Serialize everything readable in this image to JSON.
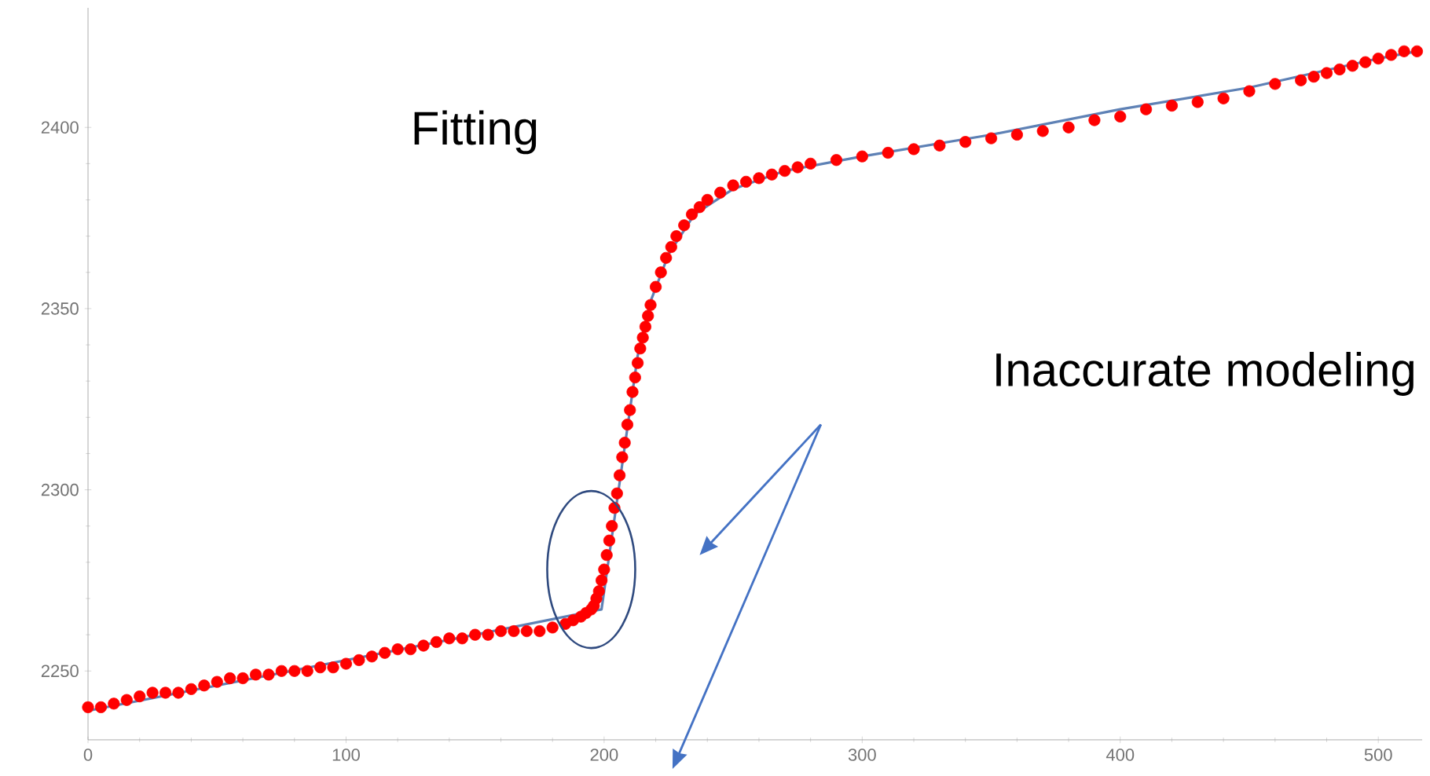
{
  "chart_data": {
    "type": "scatter",
    "annotations": [
      "Fitting",
      "Inaccurate modeling"
    ],
    "xlim": [
      0,
      517
    ],
    "ylim": [
      2231,
      2433
    ],
    "xticks": [
      0,
      100,
      200,
      300,
      400,
      500
    ],
    "yticks": [
      2250,
      2300,
      2350,
      2400
    ],
    "grid": false,
    "series": [
      {
        "marker": "circle",
        "color": "#ff0000",
        "x": [
          0,
          5,
          10,
          15,
          20,
          25,
          30,
          35,
          40,
          45,
          50,
          55,
          60,
          65,
          70,
          75,
          80,
          85,
          90,
          95,
          100,
          105,
          110,
          115,
          120,
          125,
          130,
          135,
          140,
          145,
          150,
          155,
          160,
          165,
          170,
          175,
          180,
          185,
          188,
          191,
          193,
          195,
          196,
          197,
          198,
          199,
          200,
          201,
          202,
          203,
          204,
          205,
          206,
          207,
          208,
          209,
          210,
          211,
          212,
          213,
          214,
          215,
          216,
          217,
          218,
          220,
          222,
          224,
          226,
          228,
          231,
          234,
          237,
          240,
          245,
          250,
          255,
          260,
          265,
          270,
          275,
          280,
          290,
          300,
          310,
          320,
          330,
          340,
          350,
          360,
          370,
          380,
          390,
          400,
          410,
          420,
          430,
          440,
          450,
          460,
          470,
          475,
          480,
          485,
          490,
          495,
          500,
          505,
          510,
          515
        ],
        "values": [
          2240,
          2240,
          2241,
          2242,
          2243,
          2244,
          2244,
          2244,
          2245,
          2246,
          2247,
          2248,
          2248,
          2249,
          2249,
          2250,
          2250,
          2250,
          2251,
          2251,
          2252,
          2253,
          2254,
          2255,
          2256,
          2256,
          2257,
          2258,
          2259,
          2259,
          2260,
          2260,
          2261,
          2261,
          2261,
          2261,
          2262,
          2263,
          2264,
          2265,
          2266,
          2267,
          2268,
          2270,
          2272,
          2275,
          2278,
          2282,
          2286,
          2290,
          2295,
          2299,
          2304,
          2309,
          2313,
          2318,
          2322,
          2327,
          2331,
          2335,
          2339,
          2342,
          2345,
          2348,
          2351,
          2356,
          2360,
          2364,
          2367,
          2370,
          2373,
          2376,
          2378,
          2380,
          2382,
          2384,
          2385,
          2386,
          2387,
          2388,
          2389,
          2390,
          2391,
          2392,
          2393,
          2394,
          2395,
          2396,
          2397,
          2398,
          2399,
          2400,
          2402,
          2403,
          2405,
          2406,
          2407,
          2408,
          2410,
          2412,
          2413,
          2414,
          2415,
          2416,
          2417,
          2418,
          2419,
          2420,
          2421,
          2421
        ]
      },
      {
        "type": "line",
        "color": "#5e81b5",
        "x": [
          0,
          50,
          100,
          150,
          199,
          213,
          218,
          225,
          235,
          250,
          270,
          300,
          350,
          400,
          450,
          500,
          515
        ],
        "values": [
          2239,
          2246,
          2253,
          2260,
          2267,
          2337,
          2352,
          2365,
          2376,
          2383,
          2388,
          2392,
          2398,
          2405,
          2411,
          2419,
          2421
        ]
      }
    ]
  }
}
